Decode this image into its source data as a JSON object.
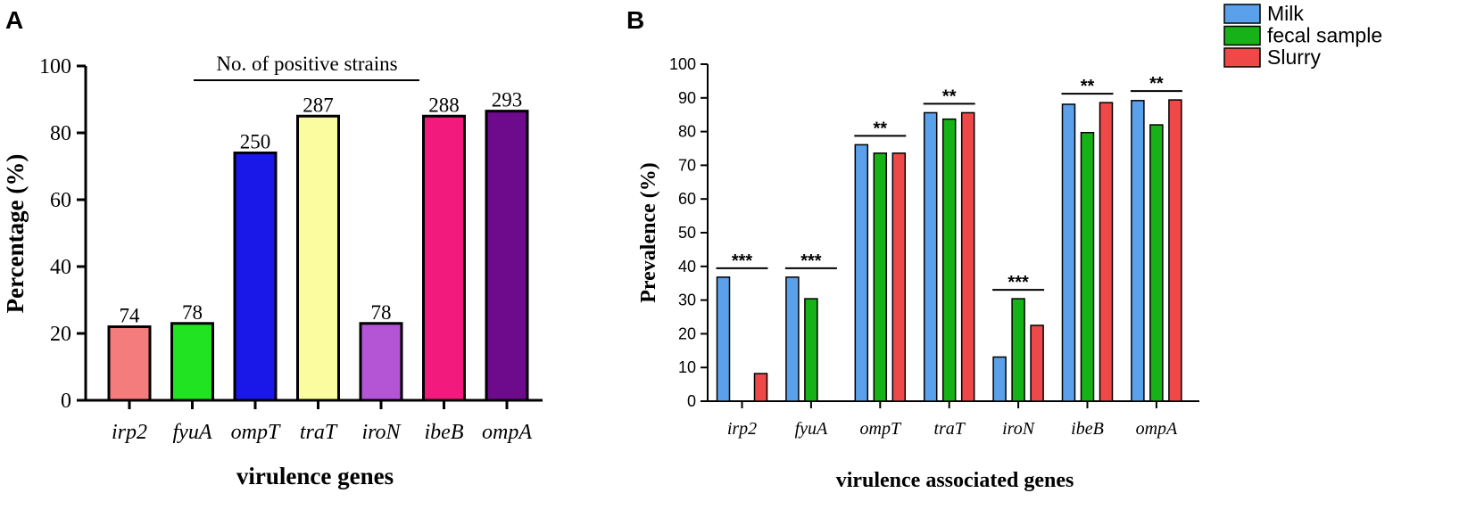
{
  "chart_data": [
    {
      "panel": "A",
      "type": "bar",
      "categories": [
        "irp2",
        "fyuA",
        "ompT",
        "traT",
        "iroN",
        "ibeB",
        "ompA"
      ],
      "values": [
        22,
        23,
        74,
        85,
        23,
        85,
        86.5
      ],
      "data_labels": [
        "74",
        "78",
        "250",
        "287",
        "78",
        "288",
        "293"
      ],
      "colors": [
        "#f47c7c",
        "#22e322",
        "#1a18e8",
        "#fbfba0",
        "#b455d6",
        "#f21a7c",
        "#6e0a8c"
      ],
      "title": "",
      "annotation": "No. of positive strains",
      "xlabel": "virulence genes",
      "ylabel": "Percentage (%)",
      "ylim": [
        0,
        100
      ],
      "yticks": [
        0,
        20,
        40,
        60,
        80,
        100
      ],
      "grid": false
    },
    {
      "panel": "B",
      "type": "bar",
      "categories": [
        "irp2",
        "fyuA",
        "ompT",
        "traT",
        "iroN",
        "ibeB",
        "ompA"
      ],
      "series": [
        {
          "name": "Milk",
          "color": "#5aa0ea",
          "values": [
            36.8,
            36.8,
            76.1,
            85.6,
            13.1,
            88.1,
            89.2
          ]
        },
        {
          "name": "fecal sample",
          "color": "#17b217",
          "values": [
            0,
            30.4,
            73.6,
            83.7,
            30.4,
            79.7,
            82.0
          ]
        },
        {
          "name": "Slurry",
          "color": "#ee4848",
          "values": [
            8.2,
            0,
            73.6,
            85.6,
            22.5,
            88.6,
            89.4
          ]
        }
      ],
      "significance": [
        "***",
        "***",
        "**",
        "**",
        "***",
        "**",
        "**"
      ],
      "title": "",
      "xlabel": "virulence associated genes",
      "ylabel": "Prevalence (%)",
      "ylim": [
        0,
        100
      ],
      "yticks": [
        0,
        10,
        20,
        30,
        40,
        50,
        60,
        70,
        80,
        90,
        100
      ],
      "legend_position": "top-right",
      "grid": false
    }
  ]
}
